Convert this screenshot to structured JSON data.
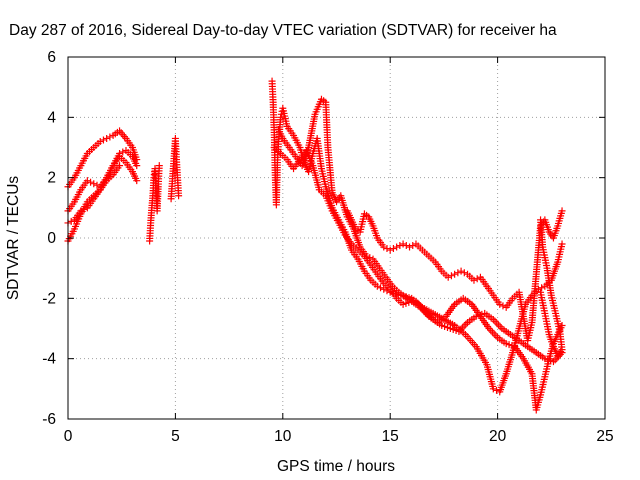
{
  "chart_data": {
    "type": "scatter",
    "title": "Day 287 of 2016, Sidereal Day-to-day VTEC variation (SDTVAR) for receiver ha",
    "xlabel": "GPS time / hours",
    "ylabel": "SDTVAR / TECUs",
    "xlim": [
      0,
      25
    ],
    "ylim": [
      -6,
      6
    ],
    "xticks": [
      "0",
      "5",
      "10",
      "15",
      "20",
      "25"
    ],
    "yticks": [
      "-6",
      "-4",
      "-2",
      "0",
      "2",
      "4",
      "6"
    ],
    "grid": true,
    "legend": "none",
    "marker": "+",
    "color": "#ff0000",
    "series": [
      {
        "points": [
          [
            0.0,
            1.7
          ],
          [
            0.3,
            2.0
          ],
          [
            0.6,
            2.4
          ],
          [
            0.9,
            2.8
          ],
          [
            1.2,
            3.0
          ],
          [
            1.5,
            3.2
          ],
          [
            1.8,
            3.3
          ],
          [
            2.1,
            3.4
          ],
          [
            2.4,
            3.55
          ],
          [
            2.7,
            3.3
          ],
          [
            3.0,
            3.0
          ],
          [
            3.2,
            2.6
          ]
        ]
      },
      {
        "points": [
          [
            0.0,
            0.9
          ],
          [
            0.3,
            1.2
          ],
          [
            0.6,
            1.6
          ],
          [
            0.9,
            1.9
          ],
          [
            1.2,
            1.8
          ],
          [
            1.5,
            1.7
          ],
          [
            1.8,
            2.0
          ],
          [
            2.1,
            2.4
          ],
          [
            2.4,
            2.7
          ],
          [
            2.7,
            2.5
          ],
          [
            3.0,
            2.2
          ],
          [
            3.2,
            1.9
          ]
        ]
      },
      {
        "points": [
          [
            0.0,
            -0.1
          ],
          [
            0.3,
            0.3
          ],
          [
            0.6,
            0.8
          ],
          [
            0.9,
            1.2
          ],
          [
            1.2,
            1.4
          ],
          [
            1.5,
            1.6
          ],
          [
            1.8,
            2.0
          ],
          [
            2.1,
            2.4
          ],
          [
            2.4,
            2.8
          ],
          [
            2.7,
            2.9
          ],
          [
            3.0,
            2.7
          ],
          [
            3.2,
            2.4
          ]
        ]
      },
      {
        "points": [
          [
            0.0,
            0.5
          ],
          [
            0.3,
            0.6
          ],
          [
            0.6,
            0.9
          ],
          [
            0.9,
            1.0
          ],
          [
            1.2,
            1.3
          ],
          [
            1.5,
            1.6
          ],
          [
            1.8,
            1.9
          ],
          [
            2.1,
            2.1
          ],
          [
            2.4,
            2.4
          ]
        ]
      },
      {
        "points": [
          [
            3.8,
            -0.1
          ],
          [
            3.85,
            0.5
          ],
          [
            3.9,
            1.0
          ],
          [
            3.95,
            1.4
          ],
          [
            4.0,
            2.0
          ],
          [
            4.05,
            2.3
          ],
          [
            4.1,
            1.5
          ],
          [
            4.15,
            0.9
          ],
          [
            4.2,
            1.7
          ],
          [
            4.25,
            2.4
          ]
        ]
      },
      {
        "points": [
          [
            4.8,
            1.3
          ],
          [
            4.85,
            1.8
          ],
          [
            4.9,
            2.3
          ],
          [
            4.95,
            2.8
          ],
          [
            5.0,
            3.3
          ],
          [
            5.05,
            2.6
          ],
          [
            5.1,
            2.0
          ],
          [
            5.15,
            1.4
          ]
        ]
      },
      {
        "points": [
          [
            9.5,
            5.2
          ],
          [
            9.55,
            4.5
          ],
          [
            9.6,
            3.5
          ],
          [
            9.65,
            2.0
          ],
          [
            9.7,
            1.1
          ],
          [
            9.75,
            2.5
          ],
          [
            9.8,
            3.2
          ],
          [
            9.9,
            4.0
          ],
          [
            10.0,
            4.3
          ],
          [
            10.2,
            3.7
          ],
          [
            10.5,
            3.4
          ],
          [
            10.8,
            3.0
          ],
          [
            11.0,
            2.5
          ],
          [
            11.2,
            2.2
          ],
          [
            11.4,
            2.8
          ],
          [
            11.6,
            3.3
          ],
          [
            11.8,
            2.3
          ],
          [
            12.0,
            1.7
          ],
          [
            12.3,
            1.0
          ],
          [
            12.6,
            0.6
          ],
          [
            12.9,
            0.2
          ],
          [
            13.2,
            -0.4
          ],
          [
            13.5,
            -0.7
          ],
          [
            13.8,
            -1.1
          ],
          [
            14.1,
            -1.4
          ],
          [
            14.4,
            -1.6
          ],
          [
            14.7,
            -1.7
          ],
          [
            15.0,
            -1.8
          ],
          [
            15.5,
            -1.9
          ],
          [
            16.0,
            -2.0
          ],
          [
            16.5,
            -2.3
          ],
          [
            17.0,
            -2.5
          ],
          [
            17.5,
            -2.7
          ],
          [
            18.0,
            -2.9
          ],
          [
            18.5,
            -3.2
          ],
          [
            19.0,
            -3.6
          ],
          [
            19.5,
            -4.2
          ],
          [
            19.8,
            -5.0
          ],
          [
            20.1,
            -5.1
          ],
          [
            20.4,
            -4.5
          ],
          [
            20.7,
            -3.8
          ],
          [
            21.0,
            -3.0
          ],
          [
            21.3,
            -2.2
          ],
          [
            21.6,
            -1.9
          ],
          [
            21.9,
            -1.7
          ],
          [
            22.2,
            -1.6
          ],
          [
            22.5,
            -1.4
          ],
          [
            22.8,
            -0.8
          ],
          [
            23.0,
            -0.2
          ]
        ]
      },
      {
        "points": [
          [
            9.8,
            3.6
          ],
          [
            10.0,
            3.3
          ],
          [
            10.3,
            3.0
          ],
          [
            10.6,
            2.7
          ],
          [
            10.9,
            2.4
          ],
          [
            11.2,
            3.0
          ],
          [
            11.5,
            4.1
          ],
          [
            11.8,
            4.6
          ],
          [
            12.0,
            4.5
          ],
          [
            12.1,
            3.0
          ],
          [
            12.3,
            1.5
          ],
          [
            12.5,
            1.2
          ],
          [
            12.7,
            1.4
          ],
          [
            13.0,
            0.7
          ],
          [
            13.3,
            0.3
          ],
          [
            13.6,
            -0.3
          ],
          [
            13.9,
            -0.6
          ],
          [
            14.2,
            -0.7
          ],
          [
            14.5,
            -1.0
          ],
          [
            14.8,
            -1.3
          ],
          [
            15.1,
            -1.6
          ],
          [
            15.4,
            -1.8
          ],
          [
            15.8,
            -2.0
          ],
          [
            16.2,
            -2.1
          ],
          [
            16.6,
            -2.4
          ],
          [
            17.0,
            -2.7
          ],
          [
            17.4,
            -2.9
          ],
          [
            17.8,
            -3.0
          ],
          [
            18.2,
            -3.1
          ],
          [
            18.6,
            -2.8
          ],
          [
            19.0,
            -2.6
          ],
          [
            19.4,
            -2.5
          ],
          [
            19.8,
            -2.7
          ],
          [
            20.2,
            -3.0
          ],
          [
            20.6,
            -3.2
          ],
          [
            21.0,
            -3.4
          ],
          [
            21.4,
            -3.6
          ],
          [
            21.8,
            -3.8
          ],
          [
            22.2,
            -4.0
          ],
          [
            22.6,
            -4.1
          ],
          [
            23.0,
            -3.8
          ]
        ]
      },
      {
        "points": [
          [
            9.6,
            3.0
          ],
          [
            9.9,
            2.8
          ],
          [
            10.2,
            2.6
          ],
          [
            10.5,
            2.3
          ],
          [
            10.8,
            2.6
          ],
          [
            11.1,
            2.9
          ],
          [
            11.4,
            2.4
          ],
          [
            11.7,
            1.6
          ],
          [
            12.0,
            1.4
          ],
          [
            12.3,
            0.9
          ],
          [
            12.6,
            0.5
          ],
          [
            12.9,
            0.1
          ],
          [
            13.2,
            -0.2
          ],
          [
            13.5,
            -0.4
          ],
          [
            13.8,
            -0.6
          ],
          [
            14.1,
            -0.9
          ],
          [
            14.4,
            -1.2
          ],
          [
            14.7,
            -1.5
          ],
          [
            15.0,
            -1.7
          ],
          [
            15.3,
            -2.0
          ],
          [
            15.6,
            -2.2
          ],
          [
            16.0,
            -2.1
          ],
          [
            16.4,
            -2.3
          ],
          [
            16.8,
            -2.6
          ],
          [
            17.2,
            -2.8
          ],
          [
            17.6,
            -2.6
          ],
          [
            18.0,
            -2.2
          ],
          [
            18.4,
            -2.0
          ],
          [
            18.8,
            -2.2
          ],
          [
            19.2,
            -2.6
          ],
          [
            19.6,
            -3.0
          ],
          [
            20.0,
            -3.3
          ],
          [
            20.4,
            -3.5
          ],
          [
            20.8,
            -3.6
          ],
          [
            21.2,
            -4.0
          ],
          [
            21.6,
            -4.5
          ],
          [
            21.8,
            -5.7
          ],
          [
            22.0,
            -5.2
          ],
          [
            22.2,
            -4.6
          ],
          [
            22.4,
            -4.0
          ],
          [
            22.6,
            -3.5
          ],
          [
            22.8,
            -3.2
          ],
          [
            23.0,
            -2.9
          ]
        ]
      },
      {
        "points": [
          [
            13.0,
            0.9
          ],
          [
            13.2,
            0.6
          ],
          [
            13.4,
            0.3
          ],
          [
            13.6,
            0.2
          ],
          [
            13.8,
            0.8
          ],
          [
            14.0,
            0.7
          ],
          [
            14.2,
            0.4
          ],
          [
            14.4,
            0.0
          ],
          [
            14.7,
            -0.3
          ],
          [
            15.0,
            -0.4
          ],
          [
            15.3,
            -0.3
          ],
          [
            15.6,
            -0.2
          ],
          [
            15.9,
            -0.3
          ],
          [
            16.2,
            -0.2
          ],
          [
            16.5,
            -0.4
          ],
          [
            16.8,
            -0.6
          ],
          [
            17.1,
            -0.8
          ],
          [
            17.4,
            -1.1
          ],
          [
            17.7,
            -1.3
          ],
          [
            18.0,
            -1.2
          ],
          [
            18.3,
            -1.1
          ],
          [
            18.6,
            -1.2
          ],
          [
            18.9,
            -1.4
          ],
          [
            19.2,
            -1.3
          ],
          [
            19.5,
            -1.6
          ],
          [
            19.8,
            -1.9
          ],
          [
            20.1,
            -2.2
          ],
          [
            20.4,
            -2.3
          ],
          [
            20.7,
            -2.0
          ],
          [
            21.0,
            -1.8
          ],
          [
            21.2,
            -2.6
          ],
          [
            21.4,
            -3.4
          ],
          [
            21.6,
            -2.8
          ],
          [
            21.8,
            -1.2
          ],
          [
            22.0,
            0.4
          ],
          [
            22.2,
            0.6
          ],
          [
            22.4,
            0.2
          ],
          [
            22.6,
            0.0
          ],
          [
            22.8,
            0.4
          ],
          [
            23.0,
            0.9
          ]
        ]
      },
      {
        "points": [
          [
            22.0,
            -1.8
          ],
          [
            22.2,
            -2.5
          ],
          [
            22.4,
            -3.2
          ],
          [
            22.6,
            -3.6
          ],
          [
            22.8,
            -3.9
          ],
          [
            23.0,
            -3.7
          ],
          [
            22.9,
            -3.1
          ],
          [
            22.7,
            -2.5
          ],
          [
            22.5,
            -1.9
          ],
          [
            22.3,
            -1.0
          ],
          [
            22.1,
            -0.3
          ],
          [
            22.0,
            0.6
          ]
        ]
      }
    ]
  }
}
